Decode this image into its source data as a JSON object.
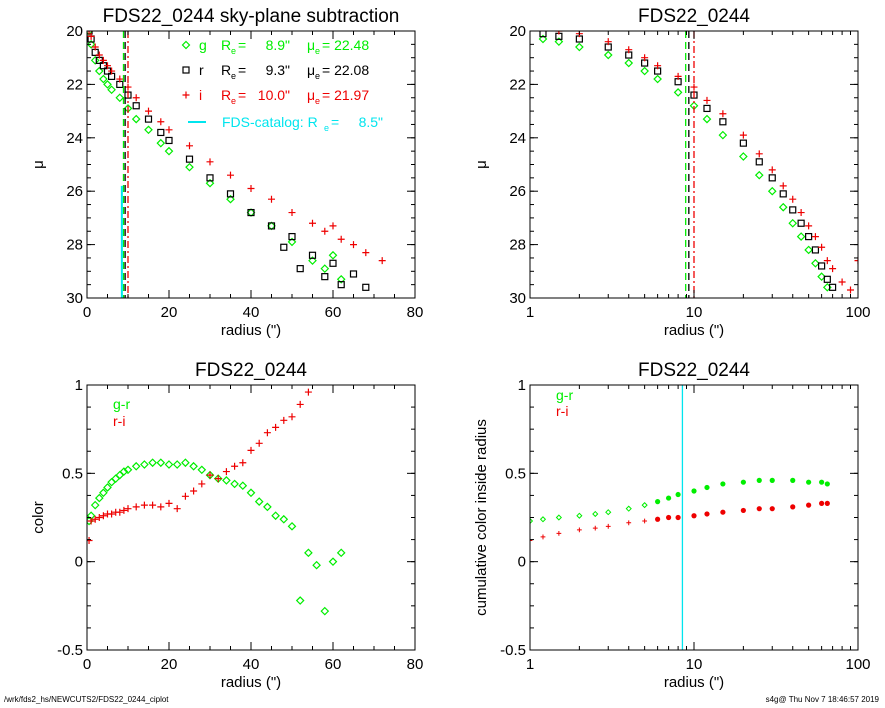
{
  "footer": {
    "path": "/wrk/fds2_hs/NEWCUTS2/FDS22_0244_ciplot",
    "stamp": "s4g@  Thu Nov  7 18:46:57 2019"
  },
  "colors": {
    "g": "#00ee00",
    "r": "#000000",
    "i": "#ee0000",
    "catalog": "#00e5ee"
  },
  "chart_data": [
    {
      "id": "panel1",
      "type": "scatter",
      "title": "FDS22_0244 sky-plane subtraction",
      "xlabel": "radius (\")",
      "ylabel": "μ",
      "xlim": [
        0,
        80
      ],
      "ylim": [
        30,
        20
      ],
      "xticks": [
        0,
        20,
        40,
        60,
        80
      ],
      "yticks": [
        20,
        22,
        24,
        26,
        28,
        30
      ],
      "legend": [
        {
          "band": "g",
          "symbol": "diamond",
          "re": "8.9\"",
          "mue": "22.48"
        },
        {
          "band": "r",
          "symbol": "square",
          "re": "9.3\"",
          "mue": "22.08"
        },
        {
          "band": "i",
          "symbol": "plus",
          "re": "10.0\"",
          "mue": "21.97"
        }
      ],
      "catalog_label": "FDS-catalog: R",
      "catalog_value": "8.5\"",
      "re_lines": {
        "g": 8.9,
        "r": 9.3,
        "i": 10.0,
        "catalog": 8.5
      },
      "series": [
        {
          "name": "g",
          "x": [
            0.5,
            1,
            2,
            3,
            4,
            5,
            6,
            8,
            10,
            12,
            15,
            18,
            20,
            25,
            30,
            35,
            40,
            45,
            50,
            55,
            58,
            60,
            62
          ],
          "y": [
            20.0,
            20.5,
            21.1,
            21.5,
            21.8,
            22.0,
            22.2,
            22.5,
            22.9,
            23.3,
            23.7,
            24.2,
            24.5,
            25.1,
            25.7,
            26.3,
            26.8,
            27.3,
            27.9,
            28.6,
            28.9,
            28.4,
            29.3
          ]
        },
        {
          "name": "r",
          "x": [
            0.5,
            1,
            2,
            3,
            4,
            5,
            6,
            8,
            10,
            12,
            15,
            18,
            20,
            25,
            30,
            35,
            40,
            45,
            48,
            50,
            52,
            55,
            58,
            60,
            62,
            65,
            68
          ],
          "y": [
            20.0,
            20.3,
            20.8,
            21.1,
            21.3,
            21.5,
            21.7,
            22.0,
            22.4,
            22.8,
            23.3,
            23.8,
            24.1,
            24.8,
            25.5,
            26.1,
            26.8,
            27.3,
            28.1,
            27.7,
            28.9,
            28.4,
            29.2,
            28.7,
            29.5,
            29.1,
            29.6
          ]
        },
        {
          "name": "i",
          "x": [
            0.5,
            1,
            2,
            3,
            4,
            5,
            6,
            8,
            10,
            12,
            15,
            18,
            20,
            25,
            30,
            35,
            40,
            45,
            50,
            55,
            58,
            60,
            62,
            65,
            68,
            72
          ],
          "y": [
            20.0,
            20.2,
            20.6,
            20.9,
            21.1,
            21.3,
            21.5,
            21.8,
            22.1,
            22.5,
            23.0,
            23.4,
            23.7,
            24.3,
            24.9,
            25.4,
            25.9,
            26.3,
            26.8,
            27.2,
            27.5,
            27.3,
            27.8,
            28.0,
            28.3,
            28.6
          ]
        }
      ]
    },
    {
      "id": "panel2",
      "type": "scatter",
      "title": "FDS22_0244",
      "xlabel": "radius (\")",
      "ylabel": "μ",
      "xscale": "log",
      "xlim": [
        1,
        100
      ],
      "ylim": [
        30,
        20
      ],
      "xticks": [
        1,
        10,
        100
      ],
      "yticks": [
        20,
        22,
        24,
        26,
        28,
        30
      ],
      "re_lines": {
        "g": 8.9,
        "r": 9.3,
        "i": 10.0
      },
      "series": [
        {
          "name": "g",
          "x": [
            1.2,
            1.5,
            2,
            3,
            4,
            5,
            6,
            8,
            10,
            12,
            15,
            20,
            25,
            30,
            35,
            40,
            45,
            50,
            55,
            60,
            65
          ],
          "y": [
            20.3,
            20.4,
            20.6,
            20.9,
            21.2,
            21.5,
            21.8,
            22.3,
            22.8,
            23.3,
            23.9,
            24.7,
            25.4,
            26.0,
            26.6,
            27.2,
            27.7,
            28.2,
            28.7,
            29.2,
            29.6
          ]
        },
        {
          "name": "r",
          "x": [
            1.2,
            1.5,
            2,
            3,
            4,
            5,
            6,
            8,
            10,
            12,
            15,
            20,
            25,
            30,
            35,
            40,
            45,
            50,
            55,
            60,
            65,
            70
          ],
          "y": [
            20.1,
            20.2,
            20.3,
            20.6,
            20.9,
            21.2,
            21.5,
            21.9,
            22.4,
            22.9,
            23.4,
            24.2,
            24.9,
            25.5,
            26.1,
            26.7,
            27.2,
            27.7,
            28.2,
            28.8,
            29.3,
            29.6
          ]
        },
        {
          "name": "i",
          "x": [
            1.2,
            1.5,
            2,
            3,
            4,
            5,
            6,
            8,
            10,
            12,
            15,
            20,
            25,
            30,
            35,
            40,
            45,
            50,
            55,
            60,
            65,
            70,
            80,
            90,
            100
          ],
          "y": [
            19.9,
            20.0,
            20.1,
            20.4,
            20.7,
            21.0,
            21.3,
            21.7,
            22.1,
            22.6,
            23.1,
            23.9,
            24.6,
            25.2,
            25.8,
            26.3,
            26.8,
            27.3,
            27.7,
            28.1,
            28.6,
            28.9,
            29.4,
            29.7,
            28.6
          ]
        }
      ]
    },
    {
      "id": "panel3",
      "type": "scatter",
      "title": "FDS22_0244",
      "xlabel": "radius (\")",
      "ylabel": "color",
      "xlim": [
        0,
        80
      ],
      "ylim": [
        -0.5,
        1.0
      ],
      "xticks": [
        0,
        20,
        40,
        60,
        80
      ],
      "yticks": [
        -0.5,
        0.0,
        0.5,
        1.0
      ],
      "legend": [
        {
          "name": "g-r"
        },
        {
          "name": "r-i"
        }
      ],
      "series": [
        {
          "name": "g-r",
          "x": [
            0.5,
            1,
            2,
            3,
            4,
            5,
            6,
            7,
            8,
            9,
            10,
            12,
            14,
            16,
            18,
            20,
            22,
            24,
            26,
            28,
            30,
            32,
            34,
            36,
            38,
            40,
            42,
            44,
            46,
            48,
            50,
            52,
            54,
            56,
            58,
            60,
            62
          ],
          "y": [
            0.23,
            0.26,
            0.32,
            0.36,
            0.39,
            0.42,
            0.45,
            0.47,
            0.49,
            0.51,
            0.52,
            0.54,
            0.55,
            0.56,
            0.56,
            0.55,
            0.55,
            0.56,
            0.54,
            0.52,
            0.49,
            0.47,
            0.46,
            0.44,
            0.43,
            0.39,
            0.34,
            0.31,
            0.26,
            0.24,
            0.2,
            -0.22,
            0.05,
            -0.02,
            -0.28,
            0.0,
            0.05
          ]
        },
        {
          "name": "r-i",
          "x": [
            0.5,
            1,
            2,
            3,
            4,
            5,
            6,
            7,
            8,
            9,
            10,
            12,
            14,
            16,
            18,
            20,
            22,
            24,
            26,
            28,
            30,
            32,
            34,
            36,
            38,
            40,
            42,
            44,
            46,
            48,
            50,
            52,
            54
          ],
          "y": [
            0.12,
            0.23,
            0.24,
            0.25,
            0.26,
            0.27,
            0.27,
            0.28,
            0.28,
            0.29,
            0.3,
            0.31,
            0.32,
            0.32,
            0.31,
            0.33,
            0.3,
            0.37,
            0.4,
            0.44,
            0.49,
            0.47,
            0.51,
            0.54,
            0.56,
            0.63,
            0.67,
            0.73,
            0.76,
            0.8,
            0.82,
            0.89,
            0.96
          ]
        }
      ]
    },
    {
      "id": "panel4",
      "type": "scatter",
      "title": "FDS22_0244",
      "xlabel": "radius (\")",
      "ylabel": "cumulative color inside radius",
      "xscale": "log",
      "xlim": [
        1,
        100
      ],
      "ylim": [
        -0.5,
        1.0
      ],
      "xticks": [
        1,
        10,
        100
      ],
      "yticks": [
        -0.5,
        0.0,
        0.5,
        1.0
      ],
      "legend": [
        {
          "name": "g-r"
        },
        {
          "name": "r-i"
        }
      ],
      "catalog_re": 8.5,
      "series": [
        {
          "name": "g-r",
          "x": [
            1.0,
            1.2,
            1.5,
            2,
            2.5,
            3,
            4,
            5,
            6,
            7,
            8,
            10,
            12,
            15,
            20,
            25,
            30,
            40,
            50,
            60,
            65
          ],
          "y": [
            0.23,
            0.24,
            0.25,
            0.26,
            0.27,
            0.28,
            0.3,
            0.32,
            0.34,
            0.36,
            0.38,
            0.4,
            0.42,
            0.44,
            0.45,
            0.46,
            0.46,
            0.46,
            0.45,
            0.45,
            0.44
          ]
        },
        {
          "name": "r-i",
          "x": [
            1.0,
            1.2,
            1.5,
            2,
            2.5,
            3,
            4,
            5,
            6,
            7,
            8,
            10,
            12,
            15,
            20,
            25,
            30,
            40,
            50,
            60,
            65
          ],
          "y": [
            0.12,
            0.14,
            0.16,
            0.18,
            0.19,
            0.2,
            0.22,
            0.23,
            0.24,
            0.25,
            0.25,
            0.26,
            0.27,
            0.28,
            0.29,
            0.3,
            0.3,
            0.31,
            0.32,
            0.33,
            0.33
          ]
        }
      ]
    }
  ]
}
